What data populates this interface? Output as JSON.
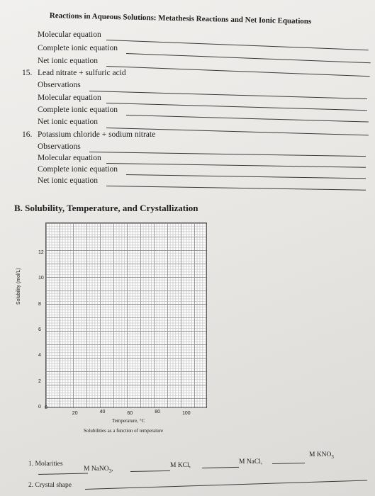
{
  "header": {
    "title": "Reactions in Aqueous Solutions: Metathesis Reactions and Net Ionic Equations"
  },
  "top_block": {
    "lines": [
      "Molecular equation",
      "Complete ionic equation",
      "Net ionic equation"
    ]
  },
  "item15": {
    "number": "15.",
    "title": "Lead nitrate + sulfuric acid",
    "lines": [
      "Observations",
      "Molecular equation",
      "Complete ionic equation",
      "Net ionic equation"
    ]
  },
  "item16": {
    "number": "16.",
    "title": "Potassium chloride + sodium nitrate",
    "lines": [
      "Observations",
      "Molecular equation",
      "Complete ionic equation",
      "Net ionic equation"
    ]
  },
  "section_b": {
    "title": "B. Solubility, Temperature, and Crystallization"
  },
  "chart_data": {
    "type": "line",
    "title": "",
    "xlabel": "Temperature, °C",
    "ylabel": "Solubility (mol/L)",
    "caption": "Solubilities as a function of temperature",
    "xlim": [
      0,
      100
    ],
    "ylim": [
      0,
      12
    ],
    "x_ticks": [
      "0",
      "20",
      "40",
      "60",
      "80",
      "100"
    ],
    "y_ticks": [
      "0",
      "2",
      "4",
      "6",
      "8",
      "10",
      "12"
    ],
    "series": [],
    "grid": true
  },
  "bottom": {
    "molarities_label": "1.  Molarities",
    "nano3": "M NaNO",
    "nano3_sub": "3",
    "nano3_suffix": ",",
    "kcl": "M KCl,",
    "nacl": "M NaCl,",
    "kno3": "M KNO",
    "kno3_sub": "3",
    "crystal_label": "2.  Crystal shape"
  }
}
